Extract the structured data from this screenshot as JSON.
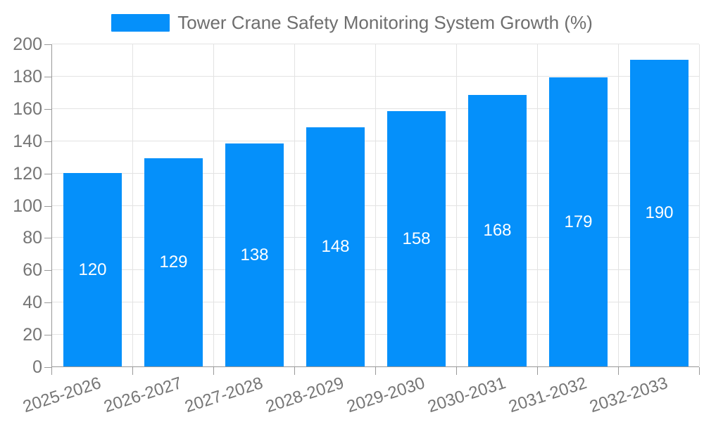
{
  "legend": {
    "label": "Tower Crane Safety Monitoring System Growth (%)"
  },
  "chart_data": {
    "type": "bar",
    "title": "Tower Crane Safety Monitoring System Growth (%)",
    "categories": [
      "2025-2026",
      "2026-2027",
      "2027-2028",
      "2028-2029",
      "2029-2030",
      "2030-2031",
      "2031-2032",
      "2032-2033"
    ],
    "values": [
      120,
      129,
      138,
      148,
      158,
      168,
      179,
      190
    ],
    "xlabel": "",
    "ylabel": "",
    "ylim": [
      0,
      200
    ],
    "ytick_step": 20,
    "grid": true,
    "legend_position": "top",
    "value_labels_position": "inside-center",
    "colors": {
      "bar": "#0590fa",
      "bar_value_label": "#ffffff",
      "axis_tick_label": "#757575",
      "title_text": "#6e6e6e",
      "gridline": "#e3e3e3",
      "axis_line": "#999999"
    }
  }
}
